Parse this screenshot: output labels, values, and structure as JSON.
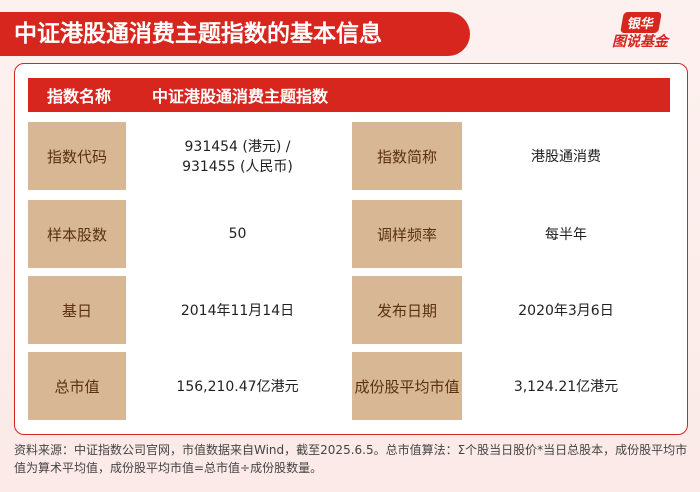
{
  "header": {
    "title": "中证港股通消费主题指数的基本信息",
    "logo_top": "银华",
    "logo_bottom": "图说基金"
  },
  "table": {
    "header": [
      "指数名称",
      "中证港股通消费主题指数"
    ],
    "rows": [
      [
        "指数代码",
        "931454 (港元) /\n931455 (人民币)",
        "指数简称",
        "港股通消费"
      ],
      [
        "样本股数",
        "50",
        "调样频率",
        "每半年"
      ],
      [
        "基日",
        "2014年11月14日",
        "发布日期",
        "2020年3月6日"
      ],
      [
        "总市值",
        "156,210.47亿港元",
        "成份股平均市值",
        "3,124.21亿港元"
      ]
    ]
  },
  "footnote": "资料来源：中证指数公司官网，市值数据来自Wind，截至2025.6.5。总市值算法：Σ个股当日股价*当日总股本，成份股平均市值为算术平均值，成份股平均市值=总市值÷成份股数量。"
}
